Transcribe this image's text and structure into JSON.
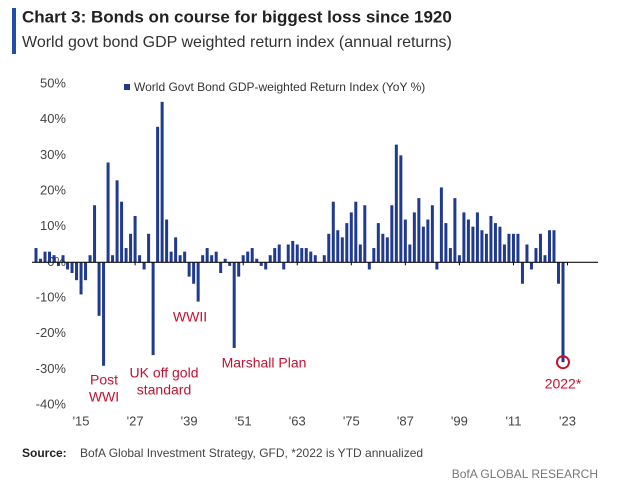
{
  "chart_data": {
    "type": "bar",
    "title": "Chart 3: Bonds on course for biggest loss since 1920",
    "subtitle": "World govt bond GDP weighted return index (annual returns)",
    "source_label": "Source:",
    "source_text": "BofA Global Investment Strategy, GFD, *2022 is YTD annualized",
    "brand": "BofA GLOBAL RESEARCH",
    "series": [
      {
        "name": "World Govt Bond GDP-weighted Return Index (YoY %)",
        "color": "#1f3a8f",
        "values": [
          4,
          1,
          3,
          3,
          2,
          -1,
          2,
          -2,
          -3,
          -5,
          -9,
          -5,
          2,
          16,
          -15,
          -29,
          28,
          2,
          23,
          17,
          4,
          8,
          13,
          2,
          -2,
          8,
          -26,
          38,
          45,
          12,
          3,
          7,
          2,
          3,
          -4,
          -6,
          -11,
          2,
          4,
          2,
          3,
          -3,
          1,
          -1,
          -24,
          -4,
          2,
          3,
          4,
          1,
          -1,
          -2,
          2,
          4,
          5,
          -2,
          5,
          6,
          5,
          4,
          4,
          3,
          2,
          0,
          2,
          8,
          17,
          9,
          7,
          11,
          14,
          17,
          5,
          16,
          -2,
          4,
          11,
          8,
          7,
          16,
          33,
          30,
          12,
          5,
          14,
          18,
          10,
          12,
          16,
          -2,
          21,
          11,
          4,
          18,
          2,
          14,
          12,
          10,
          14,
          9,
          8,
          13,
          11,
          10,
          5,
          8,
          8,
          8,
          -6,
          5,
          -2,
          4,
          8,
          2,
          9,
          9,
          -6,
          -28
        ]
      }
    ],
    "x": [
      1905,
      1906,
      1907,
      1908,
      1909,
      1910,
      1911,
      1912,
      1913,
      1914,
      1915,
      1916,
      1917,
      1918,
      1919,
      1920,
      1921,
      1922,
      1923,
      1924,
      1925,
      1926,
      1927,
      1928,
      1929,
      1930,
      1931,
      1932,
      1933,
      1934,
      1935,
      1936,
      1937,
      1938,
      1939,
      1940,
      1941,
      1942,
      1943,
      1944,
      1945,
      1946,
      1947,
      1948,
      1949,
      1950,
      1951,
      1952,
      1953,
      1954,
      1955,
      1956,
      1957,
      1958,
      1959,
      1960,
      1961,
      1962,
      1963,
      1964,
      1965,
      1966,
      1967,
      1968,
      1969,
      1970,
      1971,
      1972,
      1973,
      1974,
      1975,
      1976,
      1977,
      1978,
      1979,
      1980,
      1981,
      1982,
      1983,
      1984,
      1985,
      1986,
      1987,
      1988,
      1989,
      1990,
      1991,
      1992,
      1993,
      1994,
      1995,
      1996,
      1997,
      1998,
      1999,
      2000,
      2001,
      2002,
      2003,
      2004,
      2005,
      2006,
      2007,
      2008,
      2009,
      2010,
      2011,
      2012,
      2013,
      2014,
      2015,
      2016,
      2017,
      2018,
      2019,
      2020,
      2021,
      2022
    ],
    "xlim": [
      1904,
      2024
    ],
    "xticks": [
      {
        "value": 1915,
        "label": "'15"
      },
      {
        "value": 1927,
        "label": "'27"
      },
      {
        "value": 1939,
        "label": "'39"
      },
      {
        "value": 1951,
        "label": "'51"
      },
      {
        "value": 1963,
        "label": "'63"
      },
      {
        "value": 1975,
        "label": "'75"
      },
      {
        "value": 1987,
        "label": "'87"
      },
      {
        "value": 1999,
        "label": "'99"
      },
      {
        "value": 2011,
        "label": "'11"
      },
      {
        "value": 2023,
        "label": "'23"
      }
    ],
    "ylim": [
      -40,
      50
    ],
    "yticks": [
      {
        "value": 50,
        "label": "50%"
      },
      {
        "value": 40,
        "label": "40%"
      },
      {
        "value": 30,
        "label": "30%"
      },
      {
        "value": 20,
        "label": "20%"
      },
      {
        "value": 10,
        "label": "10%"
      },
      {
        "value": 0,
        "label": "0%"
      },
      {
        "value": -10,
        "label": "-10%"
      },
      {
        "value": -20,
        "label": "-20%"
      },
      {
        "value": -30,
        "label": "-30%"
      },
      {
        "value": -40,
        "label": "-40%"
      }
    ],
    "annotations": [
      [
        "Post",
        "WWI"
      ],
      [
        "UK off gold",
        "standard"
      ],
      [
        "WWII"
      ],
      [
        "Marshall Plan"
      ],
      [
        "2022*"
      ]
    ],
    "annotation_color": "#c8102e"
  }
}
